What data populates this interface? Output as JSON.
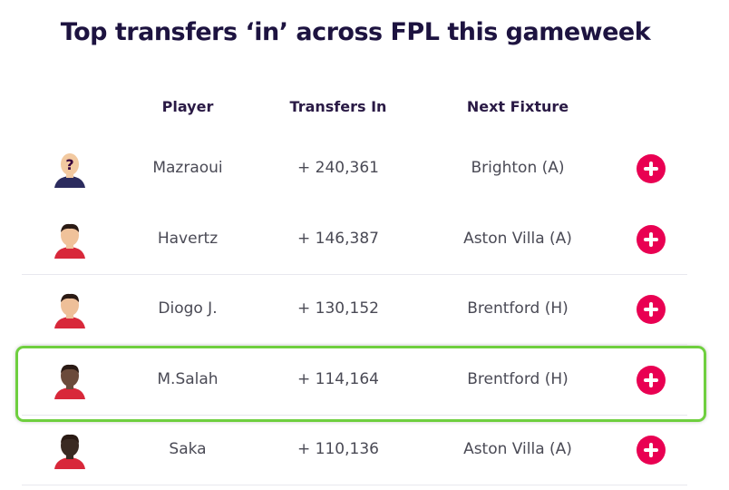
{
  "header": {
    "title": "Top transfers ‘in’ across FPL this gameweek"
  },
  "table": {
    "columns": [
      "Player",
      "Transfers In",
      "Next Fixture"
    ],
    "rows": [
      [
        "Mazraoui",
        "+ 240,361",
        "Brighton (A)"
      ],
      [
        "Havertz",
        "+ 146,387",
        "Aston Villa (A)"
      ],
      [
        "Diogo J.",
        "+ 130,152",
        "Brentford (H)"
      ],
      [
        "M.Salah",
        "+ 114,164",
        "Brentford (H)"
      ],
      [
        "Saka",
        "+ 110,136",
        "Aston Villa (A)"
      ]
    ]
  }
}
